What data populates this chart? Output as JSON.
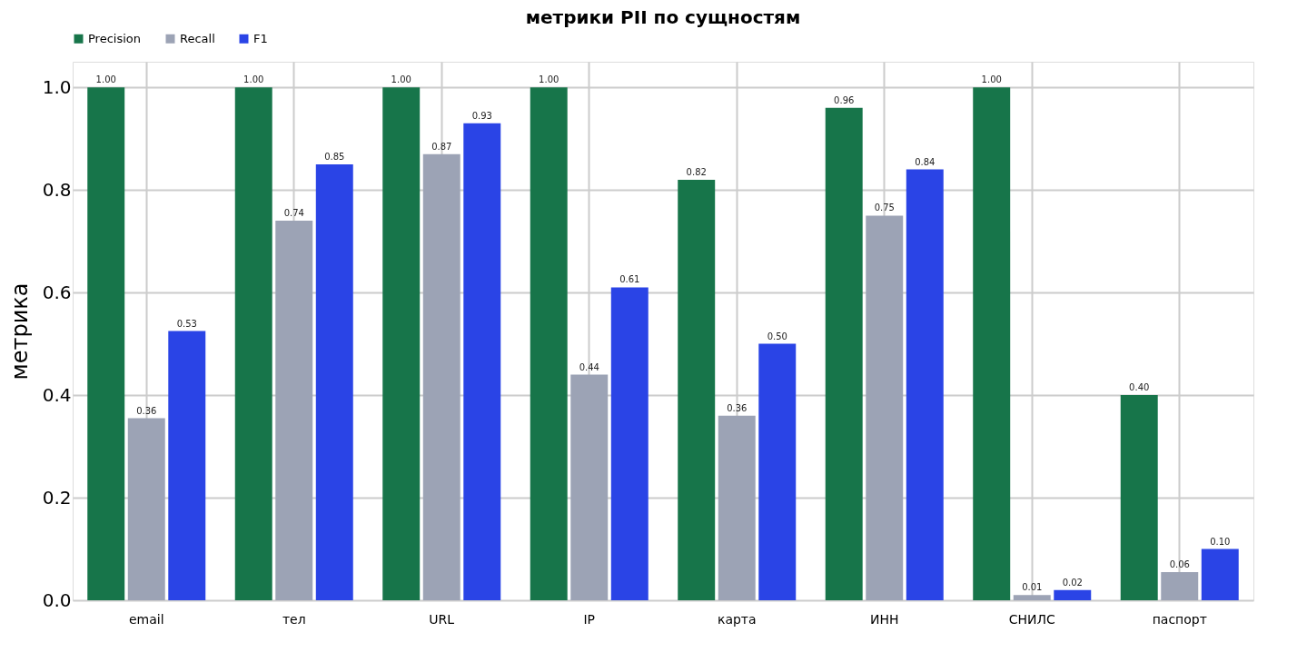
{
  "chart_data": {
    "type": "bar",
    "title": "метрики PII по сущностям",
    "ylabel": "метрика",
    "categories": [
      "email",
      "тел",
      "URL",
      "IP",
      "карта",
      "ИНН",
      "СНИЛС",
      "паспорт"
    ],
    "series": [
      {
        "name": "Precision",
        "color": "#17754a",
        "values": [
          1.0,
          1.0,
          1.0,
          1.0,
          0.82,
          0.96,
          1.0,
          0.4
        ],
        "value_labels": [
          "1.00",
          "1.00",
          "1.00",
          "1.00",
          "0.82",
          "0.96",
          "1.00",
          "0.40"
        ]
      },
      {
        "name": "Recall",
        "color": "#9ca3b5",
        "values": [
          0.355,
          0.74,
          0.87,
          0.44,
          0.36,
          0.75,
          0.01,
          0.055
        ],
        "value_labels": [
          "0.36",
          "0.74",
          "0.87",
          "0.44",
          "0.36",
          "0.75",
          "0.01",
          "0.06"
        ]
      },
      {
        "name": "F1",
        "color": "#2a44e6",
        "values": [
          0.525,
          0.85,
          0.93,
          0.61,
          0.5,
          0.84,
          0.02,
          0.1
        ],
        "value_labels": [
          "0.53",
          "0.85",
          "0.93",
          "0.61",
          "0.50",
          "0.84",
          "0.02",
          "0.10"
        ]
      }
    ],
    "ylim": [
      0,
      1.05
    ],
    "yticks": [
      {
        "value": 0,
        "label": "0.0"
      },
      {
        "value": 0.2,
        "label": "0.2"
      },
      {
        "value": 0.4,
        "label": "0.4"
      },
      {
        "value": 0.6,
        "label": "0.6"
      },
      {
        "value": 0.8,
        "label": "0.8"
      },
      {
        "value": 1.0,
        "label": "1.0"
      }
    ],
    "grid": true,
    "legend": "top"
  }
}
